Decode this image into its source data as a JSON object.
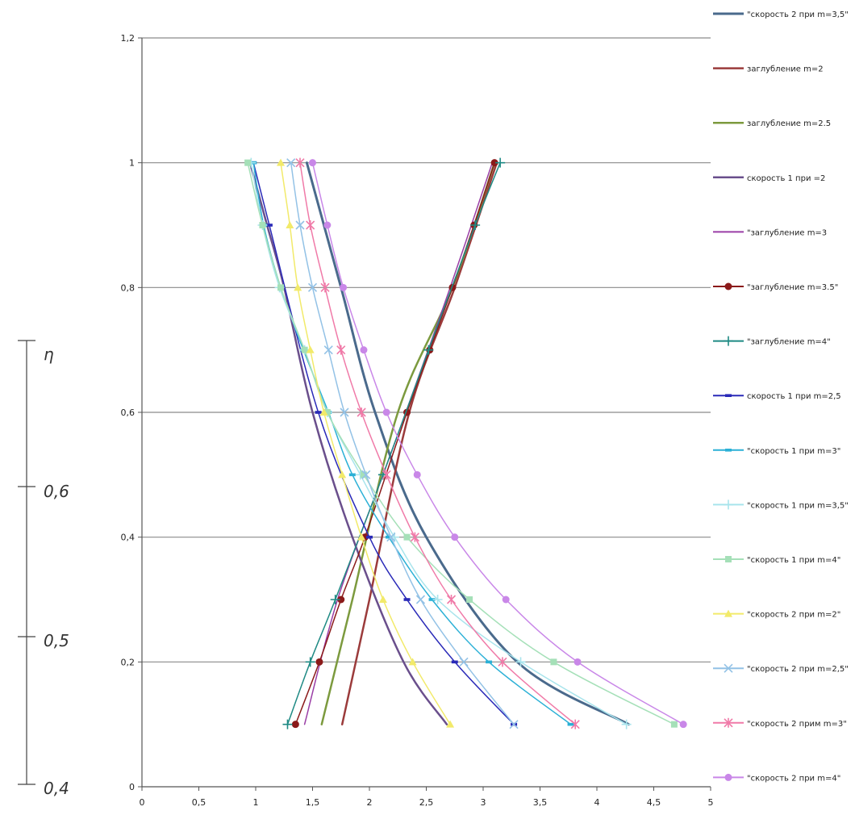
{
  "chart_data": {
    "type": "line",
    "title": "",
    "xlabel": "",
    "ylabel": "",
    "xlim": [
      0,
      5
    ],
    "ylim": [
      0,
      1.2
    ],
    "x_ticks": [
      "0",
      "0,5",
      "1",
      "1,5",
      "2",
      "2,5",
      "3",
      "3,5",
      "4",
      "4,5",
      "5"
    ],
    "y_ticks": [
      "0",
      "0,2",
      "0,4",
      "0,6",
      "0,8",
      "1",
      "1,2"
    ],
    "grid": "horizontal",
    "legend_position": "right",
    "series": [
      {
        "name": "\"скорость 2 при m=3,5\"",
        "color": "#4a6a8c",
        "marker": "none",
        "width": 3,
        "points": [
          [
            1.45,
            1.0
          ],
          [
            1.75,
            0.8
          ],
          [
            2.05,
            0.6
          ],
          [
            2.5,
            0.4
          ],
          [
            3.3,
            0.2
          ],
          [
            4.28,
            0.1
          ]
        ]
      },
      {
        "name": "заглубление  m=2",
        "color": "#9b3b3b",
        "marker": "none",
        "width": 2.5,
        "points": [
          [
            1.76,
            0.1
          ],
          [
            2.0,
            0.3
          ],
          [
            2.35,
            0.6
          ],
          [
            2.75,
            0.8
          ],
          [
            3.12,
            1.0
          ]
        ]
      },
      {
        "name": "заглубление  m=2.5",
        "color": "#7c9a3e",
        "marker": "none",
        "width": 2.5,
        "points": [
          [
            1.58,
            0.1
          ],
          [
            1.85,
            0.3
          ],
          [
            2.25,
            0.6
          ],
          [
            2.73,
            0.8
          ],
          [
            3.1,
            1.0
          ]
        ]
      },
      {
        "name": "скорость  1 при =2",
        "color": "#6a4f8c",
        "marker": "none",
        "width": 2.5,
        "points": [
          [
            0.95,
            1.0
          ],
          [
            1.1,
            0.9
          ],
          [
            1.25,
            0.8
          ],
          [
            1.5,
            0.6
          ],
          [
            1.85,
            0.4
          ],
          [
            2.3,
            0.2
          ],
          [
            2.68,
            0.1
          ]
        ]
      },
      {
        "name": "\"заглубление  m=3",
        "color": "#9a3ea6",
        "marker": "none",
        "width": 1.5,
        "points": [
          [
            1.43,
            0.1
          ],
          [
            1.72,
            0.3
          ],
          [
            2.12,
            0.5
          ],
          [
            2.32,
            0.6
          ],
          [
            2.71,
            0.8
          ],
          [
            3.08,
            1.0
          ]
        ]
      },
      {
        "name": "\"заглубление  m=3.5\"",
        "color": "#8b1a1a",
        "marker": "circle",
        "width": 1.5,
        "points": [
          [
            1.35,
            0.1
          ],
          [
            1.56,
            0.2
          ],
          [
            1.75,
            0.3
          ],
          [
            1.96,
            0.4
          ],
          [
            2.33,
            0.6
          ],
          [
            2.53,
            0.7
          ],
          [
            2.73,
            0.8
          ],
          [
            2.92,
            0.9
          ],
          [
            3.1,
            1.0
          ]
        ]
      },
      {
        "name": "\"заглубление  m=4\"",
        "color": "#1f8a84",
        "marker": "plus",
        "width": 1.5,
        "points": [
          [
            1.28,
            0.1
          ],
          [
            1.48,
            0.2
          ],
          [
            1.7,
            0.3
          ],
          [
            2.12,
            0.5
          ],
          [
            2.52,
            0.7
          ],
          [
            2.93,
            0.9
          ],
          [
            3.15,
            1.0
          ]
        ]
      },
      {
        "name": "скорость  1 при m=2,5",
        "color": "#2a2ab8",
        "marker": "dash",
        "width": 1.5,
        "points": [
          [
            0.98,
            1.0
          ],
          [
            1.12,
            0.9
          ],
          [
            1.55,
            0.6
          ],
          [
            2.0,
            0.4
          ],
          [
            2.33,
            0.3
          ],
          [
            2.75,
            0.2
          ],
          [
            3.27,
            0.1
          ]
        ]
      },
      {
        "name": "\"скорость 1 при m=3\"",
        "color": "#2bb0d6",
        "marker": "dash",
        "width": 1.5,
        "points": [
          [
            0.98,
            1.0
          ],
          [
            1.07,
            0.9
          ],
          [
            1.22,
            0.8
          ],
          [
            1.42,
            0.7
          ],
          [
            1.64,
            0.6
          ],
          [
            1.85,
            0.5
          ],
          [
            2.17,
            0.4
          ],
          [
            2.55,
            0.3
          ],
          [
            3.05,
            0.2
          ],
          [
            3.77,
            0.1
          ]
        ]
      },
      {
        "name": "\"скорость 1 при m=3,5\"",
        "color": "#a8e4ec",
        "marker": "plus",
        "width": 1.5,
        "points": [
          [
            0.96,
            1.0
          ],
          [
            1.06,
            0.9
          ],
          [
            1.21,
            0.8
          ],
          [
            1.43,
            0.7
          ],
          [
            1.63,
            0.6
          ],
          [
            1.92,
            0.5
          ],
          [
            2.22,
            0.4
          ],
          [
            2.6,
            0.3
          ],
          [
            3.33,
            0.2
          ],
          [
            4.26,
            0.1
          ]
        ]
      },
      {
        "name": "\"скорость 1 при m=4\"",
        "color": "#a5e0b8",
        "marker": "square",
        "width": 1.5,
        "points": [
          [
            0.93,
            1.0
          ],
          [
            1.06,
            0.9
          ],
          [
            1.22,
            0.8
          ],
          [
            1.43,
            0.7
          ],
          [
            1.63,
            0.6
          ],
          [
            1.95,
            0.5
          ],
          [
            2.33,
            0.4
          ],
          [
            2.88,
            0.3
          ],
          [
            3.62,
            0.2
          ],
          [
            4.68,
            0.1
          ]
        ]
      },
      {
        "name": "\"скорость 2 при m=2\"",
        "color": "#f2ea6a",
        "marker": "triangle",
        "width": 1.5,
        "points": [
          [
            1.22,
            1.0
          ],
          [
            1.3,
            0.9
          ],
          [
            1.37,
            0.8
          ],
          [
            1.48,
            0.7
          ],
          [
            1.6,
            0.6
          ],
          [
            1.76,
            0.5
          ],
          [
            1.93,
            0.4
          ],
          [
            2.12,
            0.3
          ],
          [
            2.38,
            0.2
          ],
          [
            2.71,
            0.1
          ]
        ]
      },
      {
        "name": "\"скорость 2 при m=2,5\"",
        "color": "#93c2e6",
        "marker": "x",
        "width": 1.5,
        "points": [
          [
            1.31,
            1.0
          ],
          [
            1.39,
            0.9
          ],
          [
            1.5,
            0.8
          ],
          [
            1.64,
            0.7
          ],
          [
            1.78,
            0.6
          ],
          [
            1.97,
            0.5
          ],
          [
            2.19,
            0.4
          ],
          [
            2.45,
            0.3
          ],
          [
            2.83,
            0.2
          ],
          [
            3.27,
            0.1
          ]
        ]
      },
      {
        "name": "\"скорость 2 прим m=3\"",
        "color": "#f07aa8",
        "marker": "star",
        "width": 1.5,
        "points": [
          [
            1.39,
            1.0
          ],
          [
            1.48,
            0.9
          ],
          [
            1.61,
            0.8
          ],
          [
            1.75,
            0.7
          ],
          [
            1.93,
            0.6
          ],
          [
            2.15,
            0.5
          ],
          [
            2.4,
            0.4
          ],
          [
            2.72,
            0.3
          ],
          [
            3.17,
            0.2
          ],
          [
            3.81,
            0.1
          ]
        ]
      },
      {
        "name": "\"скорость 2 при m=4\"",
        "color": "#c987e8",
        "marker": "circle",
        "width": 1.5,
        "points": [
          [
            1.5,
            1.0
          ],
          [
            1.63,
            0.9
          ],
          [
            1.77,
            0.8
          ],
          [
            1.95,
            0.7
          ],
          [
            2.15,
            0.6
          ],
          [
            2.42,
            0.5
          ],
          [
            2.75,
            0.4
          ],
          [
            3.2,
            0.3
          ],
          [
            3.83,
            0.2
          ],
          [
            4.76,
            0.1
          ]
        ]
      }
    ]
  },
  "scale": {
    "symbol": "η",
    "labels": [
      "0,6",
      "0,5",
      "0,4"
    ]
  }
}
